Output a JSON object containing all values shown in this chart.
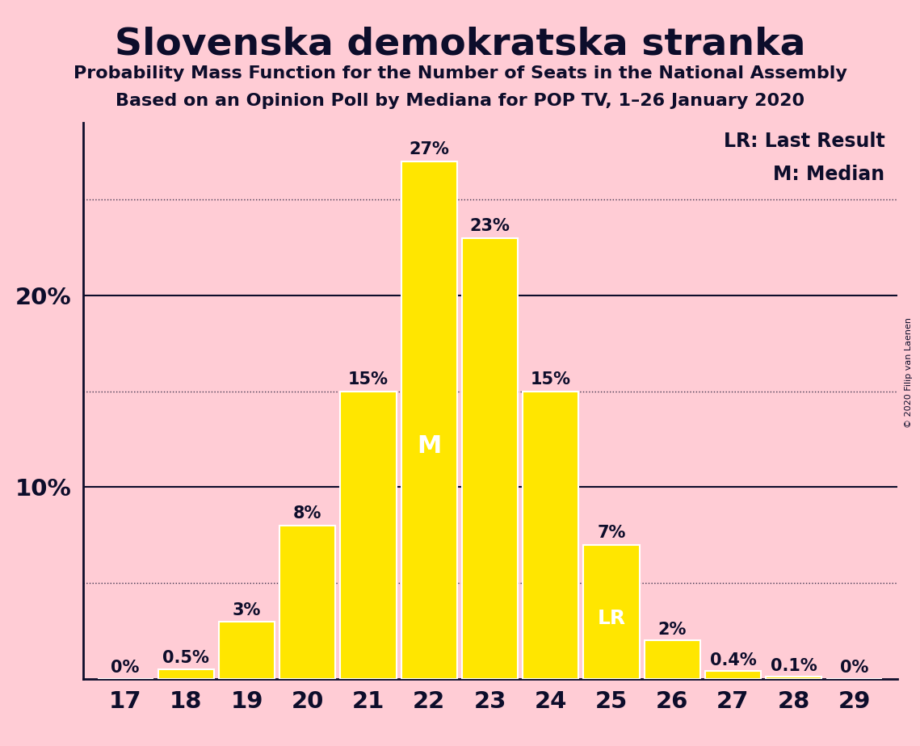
{
  "title": "Slovenska demokratska stranka",
  "subtitle1": "Probability Mass Function for the Number of Seats in the National Assembly",
  "subtitle2": "Based on an Opinion Poll by Mediana for POP TV, 1–26 January 2020",
  "copyright": "© 2020 Filip van Laenen",
  "seats": [
    17,
    18,
    19,
    20,
    21,
    22,
    23,
    24,
    25,
    26,
    27,
    28,
    29
  ],
  "probabilities": [
    0.0,
    0.5,
    3.0,
    8.0,
    15.0,
    27.0,
    23.0,
    15.0,
    7.0,
    2.0,
    0.4,
    0.1,
    0.0
  ],
  "bar_labels": [
    "0%",
    "0.5%",
    "3%",
    "8%",
    "15%",
    "27%",
    "23%",
    "15%",
    "7%",
    "2%",
    "0.4%",
    "0.1%",
    "0%"
  ],
  "median_seat": 22,
  "last_result_seat": 25,
  "bar_color": "#FFE600",
  "bar_edge_color": "#FFFFFF",
  "background_color": "#FFCCD5",
  "title_color": "#0D0D2B",
  "text_color": "#0D0D2B",
  "yticks": [
    10,
    20
  ],
  "ytick_labels": [
    "10%",
    "20%"
  ],
  "ylim": [
    0,
    29
  ],
  "dotted_lines": [
    5,
    15,
    25
  ],
  "solid_lines": [
    10,
    20
  ],
  "legend_lr": "LR: Last Result",
  "legend_m": "M: Median",
  "label_inside_color": "#FFFFFF",
  "label_outside_color": "#0D0D2B",
  "bar_label_fontsize": 15,
  "axis_tick_fontsize": 21,
  "title_fontsize": 34,
  "subtitle_fontsize": 16,
  "legend_fontsize": 17,
  "m_fontsize": 22,
  "lr_fontsize": 18
}
